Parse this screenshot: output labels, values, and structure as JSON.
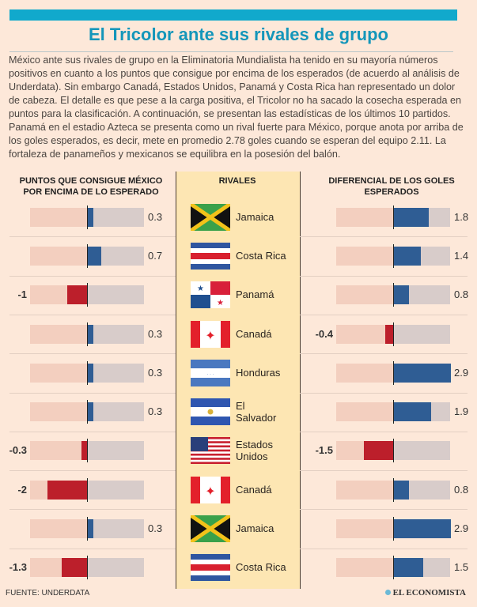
{
  "title": "El Tricolor ante sus rivales de grupo",
  "intro": "México ante sus rivales de grupo en la Eliminatoria Mundialista ha tenido en su mayoría números positivos en cuanto a los puntos que consigue por encima de los esperados (de acuerdo al análisis de Underdata). Sin embargo Canadá, Estados Unidos, Panamá y Costa Rica han representado un dolor de cabeza. El detalle es que pese a la carga positiva, el Tricolor no ha sacado la cosecha esperada en puntos para la clasificación. A continuación, se presentan las estadísticas de los últimos 10 partidos. Panamá en el estadio Azteca se presenta como un rival fuerte para México, porque anota por arriba de los goles esperados, es decir, mete en promedio 2.78 goles cuando se esperan del equipo 2.11. La fortaleza de panameños y mexicanos se equilibra en la posesión del balón.",
  "source": "FUENTE: UNDERDATA",
  "brand": "EL ECONOMISTA",
  "colors": {
    "positive": "#2f5d94",
    "negative": "#bc1f2b",
    "title": "#1496ba"
  },
  "chart_data": {
    "type": "bar",
    "headers": {
      "left": "PUNTOS QUE CONSIGUE MÉXICO POR ENCIMA DE LO ESPERADO",
      "middle": "RIVALES",
      "right": "DIFERENCIAL DE LOS GOLES ESPERADOS"
    },
    "categories": [
      "Jamaica",
      "Costa Rica",
      "Panamá",
      "Canadá",
      "Honduras",
      "El Salvador",
      "Estados Unidos",
      "Canadá",
      "Jamaica",
      "Costa Rica"
    ],
    "flags": [
      "jamaica",
      "costa-rica",
      "panama",
      "canada",
      "honduras",
      "el-salvador",
      "usa",
      "canada",
      "jamaica",
      "costa-rica"
    ],
    "series": [
      {
        "name": "Puntos que consigue México por encima de lo esperado",
        "values": [
          0.3,
          0.7,
          -1,
          0.3,
          0.3,
          0.3,
          -0.3,
          -2,
          0.3,
          -1.3
        ],
        "labels": [
          "0.3",
          "0.7",
          "-1",
          "0.3",
          "0.3",
          "0.3",
          "-0.3",
          "-2",
          "0.3",
          "-1.3"
        ]
      },
      {
        "name": "Diferencial de los goles esperados",
        "values": [
          1.8,
          1.4,
          0.8,
          -0.4,
          2.9,
          1.9,
          -1.5,
          0.8,
          2.9,
          1.5
        ],
        "labels": [
          "1.8",
          "1.4",
          "0.8",
          "-0.4",
          "2.9",
          "1.9",
          "-1.5",
          "0.8",
          "2.9",
          "1.5"
        ]
      }
    ],
    "xlim": [
      -3,
      3
    ]
  }
}
